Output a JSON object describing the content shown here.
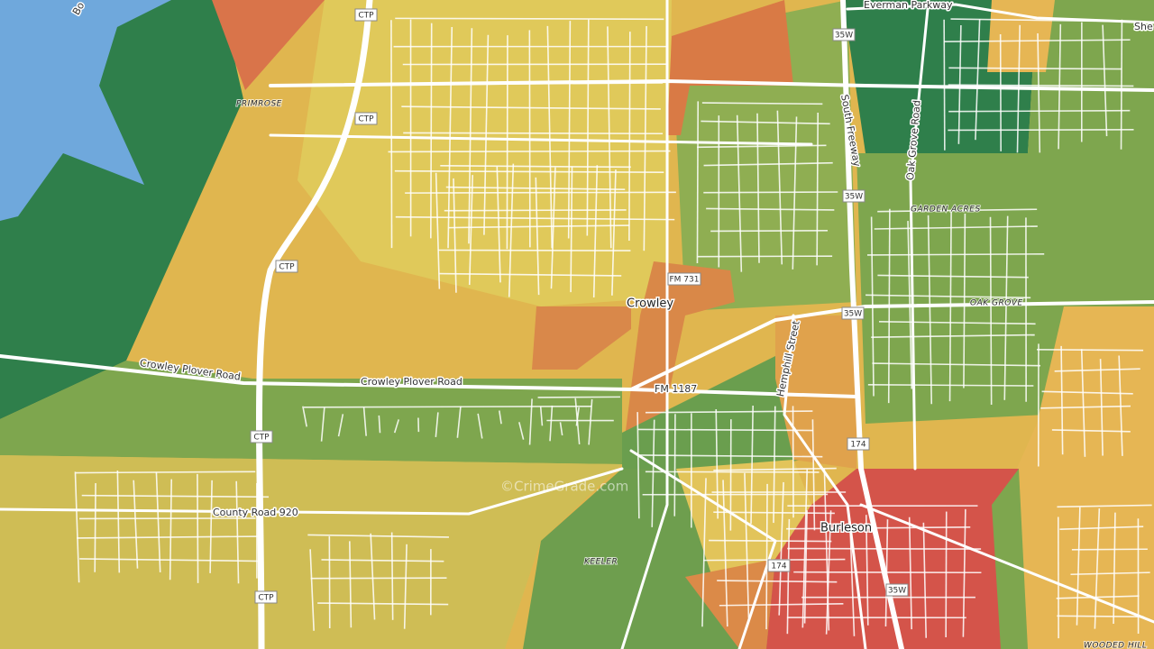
{
  "map": {
    "places": [
      "Crowley",
      "Burleson"
    ],
    "areas": [
      "PRIMROSE",
      "GARDEN ACRES",
      "OAK GROVE",
      "KEELER",
      "WOODED HILL"
    ],
    "roads": [
      "Everman Parkway",
      "South Freeway",
      "Oak Grove Road",
      "Crowley Plover Road",
      "Crowley Plover Road",
      "FM 1187",
      "Hemphill Street",
      "County Road 920"
    ],
    "shields": [
      "CTP",
      "CTP",
      "CTP",
      "CTP",
      "CTP",
      "35W",
      "35W",
      "35W",
      "35W",
      "FM 731",
      "174",
      "174"
    ],
    "cut_labels": [
      "Bo",
      "She"
    ],
    "watermark": "©CrimeGrade.com"
  }
}
